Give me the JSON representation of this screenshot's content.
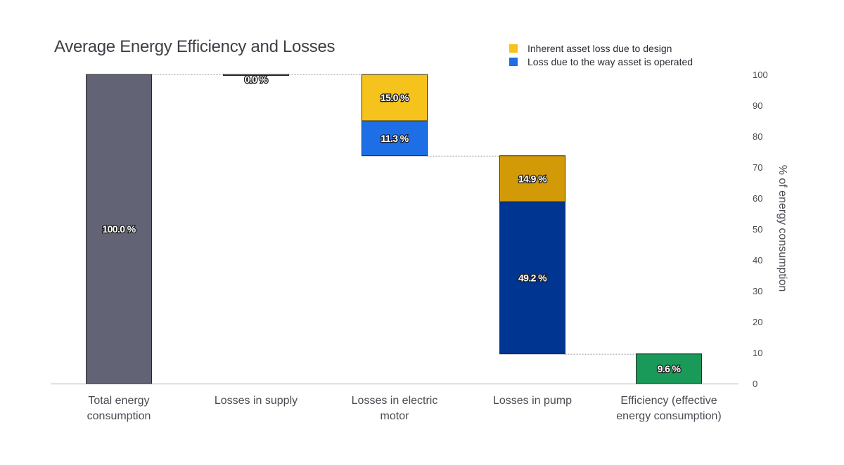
{
  "chart_data": {
    "type": "bar",
    "subtype": "waterfall-stacked",
    "title": "Average Energy Efficiency and Losses",
    "ylabel": "% of energy consumption",
    "ylim": [
      0,
      100
    ],
    "yticks": [
      0,
      10,
      20,
      30,
      40,
      50,
      60,
      70,
      80,
      90,
      100
    ],
    "y_axis_position": "right",
    "grid": false,
    "legend_position": "top-right",
    "legend": [
      {
        "label": "Inherent asset loss due to design",
        "color": "#f6c21c"
      },
      {
        "label": "Loss due to the way asset is operated",
        "color": "#1e6fe6"
      }
    ],
    "categories": [
      [
        "Total energy",
        "consumption"
      ],
      [
        "Losses in supply"
      ],
      [
        "Losses in electric",
        "motor"
      ],
      [
        "Losses in pump"
      ],
      [
        "Efficiency (effective",
        "energy consumption)"
      ]
    ],
    "bars": [
      {
        "category_index": 0,
        "segments": [
          {
            "from": 0,
            "to": 100,
            "value": 100.0,
            "label": "100.0 %",
            "color": "#626374"
          }
        ]
      },
      {
        "category_index": 1,
        "segments": [
          {
            "from": 100,
            "to": 100,
            "value": 0.0,
            "label": "0.0 %",
            "color": "#626374"
          }
        ]
      },
      {
        "category_index": 2,
        "segments": [
          {
            "from": 85.0,
            "to": 100,
            "value": 15.0,
            "label": "15.0 %",
            "color": "#f6c21c"
          },
          {
            "from": 73.7,
            "to": 85.0,
            "value": 11.3,
            "label": "11.3 %",
            "color": "#1e6fe6"
          }
        ]
      },
      {
        "category_index": 3,
        "segments": [
          {
            "from": 58.8,
            "to": 73.7,
            "value": 14.9,
            "label": "14.9 %",
            "color": "#d39a08"
          },
          {
            "from": 9.6,
            "to": 58.8,
            "value": 49.2,
            "label": "49.2 %",
            "color": "#003591"
          }
        ]
      },
      {
        "category_index": 4,
        "segments": [
          {
            "from": 0,
            "to": 9.6,
            "value": 9.6,
            "label": "9.6 %",
            "color": "#1a9a58"
          }
        ]
      }
    ],
    "connectors": [
      {
        "from_index": 0,
        "to_index": 1,
        "value": 100
      },
      {
        "from_index": 1,
        "to_index": 2,
        "value": 100
      },
      {
        "from_index": 2,
        "to_index": 3,
        "value": 73.7
      },
      {
        "from_index": 3,
        "to_index": 4,
        "value": 9.6
      }
    ]
  }
}
